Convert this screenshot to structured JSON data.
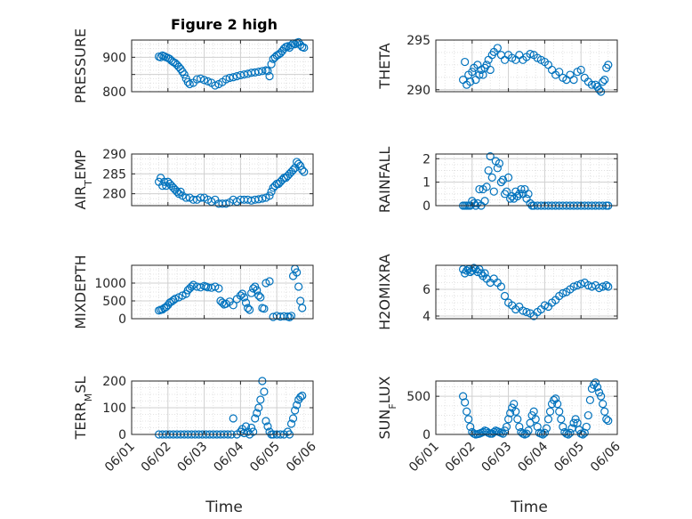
{
  "figure": {
    "title": "Figure 2 high",
    "xlabel": "Time",
    "x_tick_labels": [
      "06/01",
      "06/02",
      "06/03",
      "06/04",
      "06/05",
      "06/06"
    ],
    "marker_color": "#0072BD",
    "axis_color": "#262626",
    "grid_color": "#dcdcdc"
  },
  "chart_data": [
    {
      "type": "scatter",
      "ylabel": "PRESSURE",
      "xlim": [
        1.0,
        6.0
      ],
      "ylim": [
        800,
        950
      ],
      "yticks": [
        800,
        850,
        900
      ],
      "yticklabels": [
        "800",
        "",
        "900"
      ],
      "x": [
        1.75,
        1.8,
        1.85,
        1.9,
        1.95,
        2.0,
        2.05,
        2.1,
        2.15,
        2.2,
        2.25,
        2.3,
        2.35,
        2.4,
        2.45,
        2.5,
        2.55,
        2.6,
        2.7,
        2.8,
        2.9,
        3.0,
        3.1,
        3.2,
        3.3,
        3.4,
        3.5,
        3.6,
        3.7,
        3.8,
        3.9,
        4.0,
        4.1,
        4.2,
        4.3,
        4.4,
        4.5,
        4.6,
        4.7,
        4.75,
        4.8,
        4.85,
        4.9,
        4.95,
        5.0,
        5.05,
        5.1,
        5.15,
        5.2,
        5.25,
        5.3,
        5.35,
        5.4,
        5.45,
        5.5,
        5.55,
        5.6,
        5.65,
        5.7,
        5.75
      ],
      "y": [
        902,
        900,
        905,
        903,
        900,
        898,
        895,
        890,
        886,
        883,
        878,
        872,
        866,
        858,
        850,
        838,
        828,
        822,
        826,
        836,
        838,
        834,
        830,
        826,
        818,
        822,
        828,
        836,
        840,
        842,
        845,
        848,
        850,
        852,
        855,
        856,
        858,
        860,
        862,
        860,
        845,
        880,
        895,
        900,
        905,
        908,
        912,
        918,
        925,
        930,
        932,
        928,
        935,
        940,
        938,
        942,
        944,
        936,
        930,
        928
      ]
    },
    {
      "type": "scatter",
      "ylabel": "THETA",
      "xlim": [
        1.0,
        6.0
      ],
      "ylim": [
        289.8,
        295
      ],
      "yticks": [
        290,
        295
      ],
      "yticklabels": [
        "290",
        "295"
      ],
      "x": [
        1.75,
        1.8,
        1.85,
        1.9,
        1.95,
        2.0,
        2.05,
        2.1,
        2.15,
        2.2,
        2.25,
        2.3,
        2.35,
        2.4,
        2.45,
        2.5,
        2.55,
        2.6,
        2.7,
        2.8,
        2.9,
        3.0,
        3.1,
        3.2,
        3.3,
        3.4,
        3.5,
        3.6,
        3.7,
        3.8,
        3.9,
        4.0,
        4.1,
        4.2,
        4.3,
        4.4,
        4.5,
        4.6,
        4.7,
        4.8,
        4.9,
        5.0,
        5.1,
        5.2,
        5.3,
        5.4,
        5.45,
        5.5,
        5.55,
        5.6,
        5.65,
        5.7,
        5.75
      ],
      "y": [
        291.0,
        292.8,
        290.5,
        291.5,
        290.8,
        291.8,
        292.2,
        291.0,
        292.5,
        291.5,
        292.0,
        291.5,
        292.2,
        292.5,
        293.0,
        292.0,
        293.5,
        293.8,
        294.2,
        293.5,
        293.0,
        293.5,
        293.2,
        293.0,
        293.5,
        293.0,
        293.3,
        293.6,
        293.5,
        293.2,
        293.0,
        292.8,
        292.5,
        292.0,
        291.5,
        291.8,
        291.2,
        291.0,
        291.5,
        291.0,
        291.8,
        292.0,
        291.2,
        290.8,
        290.5,
        290.5,
        290.3,
        290.0,
        289.8,
        290.8,
        291.0,
        292.2,
        292.5
      ]
    },
    {
      "type": "scatter",
      "ylabel": "AIR_TEMP",
      "xlim": [
        1.0,
        6.0
      ],
      "ylim": [
        277,
        290
      ],
      "yticks": [
        280,
        285,
        290
      ],
      "yticklabels": [
        "280",
        "285",
        "290"
      ],
      "x": [
        1.75,
        1.8,
        1.85,
        1.9,
        1.95,
        2.0,
        2.05,
        2.1,
        2.15,
        2.2,
        2.25,
        2.3,
        2.35,
        2.4,
        2.5,
        2.6,
        2.7,
        2.8,
        2.9,
        3.0,
        3.1,
        3.2,
        3.3,
        3.4,
        3.5,
        3.6,
        3.7,
        3.8,
        3.9,
        4.0,
        4.1,
        4.2,
        4.3,
        4.4,
        4.5,
        4.6,
        4.7,
        4.8,
        4.85,
        4.9,
        4.95,
        5.0,
        5.05,
        5.1,
        5.15,
        5.2,
        5.25,
        5.3,
        5.35,
        5.4,
        5.45,
        5.5,
        5.55,
        5.6,
        5.65,
        5.7,
        5.75
      ],
      "y": [
        283,
        284,
        282,
        283,
        282,
        283,
        282.5,
        282,
        281.5,
        281,
        280.5,
        280,
        280.5,
        279.5,
        279,
        279,
        278.5,
        278.5,
        279,
        279,
        278.5,
        278,
        278.5,
        277.5,
        277.5,
        277.5,
        277.8,
        278.5,
        278,
        278.5,
        278.5,
        278.5,
        278.3,
        278.5,
        278.6,
        278.8,
        279,
        279.5,
        280.5,
        281.5,
        282,
        282.5,
        282.5,
        283,
        283.5,
        284,
        284,
        284.5,
        285,
        285.5,
        286,
        286.5,
        288,
        287.5,
        287,
        286,
        285.5
      ]
    },
    {
      "type": "scatter",
      "ylabel": "RAINFALL",
      "xlim": [
        1.0,
        6.0
      ],
      "ylim": [
        0,
        2.2
      ],
      "yticks": [
        0,
        1,
        2
      ],
      "yticklabels": [
        "0",
        "1",
        "2"
      ],
      "x": [
        1.75,
        1.8,
        1.85,
        1.9,
        1.95,
        2.0,
        2.05,
        2.1,
        2.15,
        2.2,
        2.25,
        2.3,
        2.35,
        2.4,
        2.45,
        2.5,
        2.55,
        2.6,
        2.65,
        2.7,
        2.75,
        2.8,
        2.85,
        2.9,
        2.95,
        3.0,
        3.05,
        3.1,
        3.15,
        3.2,
        3.25,
        3.3,
        3.35,
        3.4,
        3.45,
        3.5,
        3.55,
        3.6,
        3.65,
        3.7,
        3.8,
        3.9,
        4.0,
        4.1,
        4.2,
        4.3,
        4.4,
        4.5,
        4.6,
        4.7,
        4.8,
        4.9,
        5.0,
        5.1,
        5.2,
        5.3,
        5.4,
        5.5,
        5.6,
        5.7,
        5.75
      ],
      "y": [
        0,
        0,
        0,
        0,
        0,
        0.2,
        0.1,
        0,
        0.1,
        0.7,
        0,
        0.7,
        0.2,
        0.8,
        1.5,
        2.1,
        1.2,
        0.6,
        1.9,
        1.6,
        1.8,
        1.0,
        1.1,
        0.5,
        0.6,
        1.2,
        0.3,
        0.4,
        0.3,
        0.6,
        0.4,
        0.5,
        0.7,
        0.5,
        0.7,
        0.3,
        0.5,
        0.1,
        0,
        0,
        0,
        0,
        0,
        0,
        0,
        0,
        0,
        0,
        0,
        0,
        0,
        0,
        0,
        0,
        0,
        0,
        0,
        0,
        0,
        0,
        0
      ]
    },
    {
      "type": "scatter",
      "ylabel": "MIXDEPTH",
      "xlim": [
        1.0,
        6.0
      ],
      "ylim": [
        0,
        1500
      ],
      "yticks": [
        0,
        500,
        1000
      ],
      "yticklabels": [
        "0",
        "500",
        "1000"
      ],
      "x": [
        1.75,
        1.8,
        1.85,
        1.9,
        1.95,
        2.0,
        2.05,
        2.1,
        2.15,
        2.2,
        2.3,
        2.4,
        2.5,
        2.55,
        2.6,
        2.65,
        2.7,
        2.8,
        2.9,
        3.0,
        3.05,
        3.1,
        3.2,
        3.3,
        3.4,
        3.45,
        3.5,
        3.55,
        3.6,
        3.7,
        3.8,
        3.9,
        4.0,
        4.05,
        4.1,
        4.15,
        4.2,
        4.25,
        4.3,
        4.35,
        4.4,
        4.45,
        4.5,
        4.55,
        4.6,
        4.65,
        4.7,
        4.8,
        4.9,
        5.0,
        5.1,
        5.2,
        5.3,
        5.35,
        5.4,
        5.45,
        5.5,
        5.55,
        5.6,
        5.65,
        5.7
      ],
      "y": [
        230,
        250,
        260,
        300,
        330,
        380,
        450,
        480,
        520,
        560,
        600,
        650,
        700,
        800,
        850,
        900,
        950,
        900,
        880,
        920,
        900,
        880,
        870,
        900,
        850,
        500,
        450,
        400,
        420,
        480,
        380,
        550,
        650,
        700,
        600,
        450,
        300,
        250,
        720,
        850,
        900,
        800,
        650,
        600,
        300,
        280,
        1000,
        1050,
        50,
        80,
        60,
        70,
        60,
        40,
        80,
        1200,
        1400,
        1300,
        900,
        500,
        300
      ]
    },
    {
      "type": "scatter",
      "ylabel": "H2OMIXRA",
      "xlim": [
        1.0,
        6.0
      ],
      "ylim": [
        3.8,
        7.8
      ],
      "yticks": [
        4,
        6
      ],
      "yticklabels": [
        "4",
        "6"
      ],
      "x": [
        1.75,
        1.8,
        1.85,
        1.9,
        1.95,
        2.0,
        2.05,
        2.1,
        2.15,
        2.2,
        2.25,
        2.3,
        2.35,
        2.4,
        2.5,
        2.6,
        2.7,
        2.8,
        2.9,
        3.0,
        3.1,
        3.2,
        3.3,
        3.4,
        3.5,
        3.6,
        3.7,
        3.8,
        3.9,
        4.0,
        4.1,
        4.2,
        4.3,
        4.4,
        4.5,
        4.6,
        4.7,
        4.8,
        4.9,
        5.0,
        5.1,
        5.2,
        5.3,
        5.4,
        5.5,
        5.6,
        5.7,
        5.75
      ],
      "y": [
        7.5,
        7.2,
        7.4,
        7.5,
        7.3,
        7.4,
        7.6,
        7.5,
        7.3,
        7.5,
        7.2,
        7.0,
        7.2,
        6.8,
        6.5,
        6.8,
        6.5,
        6.2,
        5.5,
        5.0,
        4.8,
        4.5,
        4.7,
        4.4,
        4.3,
        4.2,
        4.0,
        4.3,
        4.5,
        4.8,
        4.7,
        5.0,
        5.2,
        5.5,
        5.7,
        5.8,
        6.0,
        6.2,
        6.3,
        6.4,
        6.5,
        6.3,
        6.2,
        6.3,
        6.1,
        6.2,
        6.3,
        6.2
      ]
    },
    {
      "type": "scatter",
      "ylabel": "TERR_MSL",
      "xlim": [
        1.0,
        6.0
      ],
      "ylim": [
        0,
        200
      ],
      "yticks": [
        0,
        100,
        200
      ],
      "yticklabels": [
        "0",
        "100",
        "200"
      ],
      "x": [
        1.75,
        1.85,
        1.95,
        2.05,
        2.15,
        2.25,
        2.35,
        2.45,
        2.55,
        2.65,
        2.75,
        2.85,
        2.95,
        3.05,
        3.15,
        3.25,
        3.35,
        3.45,
        3.55,
        3.65,
        3.75,
        3.8,
        3.9,
        4.0,
        4.05,
        4.1,
        4.15,
        4.2,
        4.25,
        4.3,
        4.35,
        4.4,
        4.45,
        4.5,
        4.55,
        4.6,
        4.65,
        4.7,
        4.75,
        4.8,
        4.85,
        4.9,
        5.0,
        5.1,
        5.2,
        5.3,
        5.35,
        5.4,
        5.45,
        5.5,
        5.55,
        5.6,
        5.65,
        5.7
      ],
      "y": [
        0,
        0,
        0,
        0,
        0,
        0,
        0,
        0,
        0,
        0,
        0,
        0,
        0,
        0,
        0,
        0,
        0,
        0,
        0,
        0,
        0,
        60,
        0,
        10,
        20,
        5,
        30,
        10,
        0,
        25,
        10,
        60,
        80,
        100,
        130,
        200,
        160,
        50,
        30,
        10,
        0,
        0,
        0,
        0,
        0,
        10,
        0,
        40,
        60,
        90,
        110,
        130,
        140,
        145
      ]
    },
    {
      "type": "scatter",
      "ylabel": "SUN_FLUX",
      "xlim": [
        1.0,
        6.0
      ],
      "ylim": [
        0,
        700
      ],
      "yticks": [
        0,
        500
      ],
      "yticklabels": [
        "0",
        "500"
      ],
      "x": [
        1.75,
        1.8,
        1.85,
        1.9,
        1.95,
        2.0,
        2.05,
        2.1,
        2.15,
        2.2,
        2.25,
        2.3,
        2.35,
        2.4,
        2.45,
        2.5,
        2.55,
        2.6,
        2.65,
        2.7,
        2.75,
        2.8,
        2.85,
        2.9,
        2.95,
        3.0,
        3.05,
        3.1,
        3.15,
        3.2,
        3.25,
        3.3,
        3.35,
        3.4,
        3.45,
        3.5,
        3.55,
        3.6,
        3.65,
        3.7,
        3.75,
        3.8,
        3.85,
        3.9,
        3.95,
        4.0,
        4.05,
        4.1,
        4.15,
        4.2,
        4.25,
        4.3,
        4.35,
        4.4,
        4.45,
        4.5,
        4.55,
        4.6,
        4.65,
        4.7,
        4.75,
        4.8,
        4.85,
        4.9,
        4.95,
        5.0,
        5.05,
        5.1,
        5.15,
        5.2,
        5.25,
        5.3,
        5.35,
        5.4,
        5.45,
        5.5,
        5.55,
        5.6,
        5.65,
        5.7,
        5.75
      ],
      "y": [
        500,
        420,
        300,
        200,
        100,
        30,
        10,
        0,
        5,
        10,
        20,
        30,
        50,
        40,
        20,
        10,
        10,
        30,
        50,
        40,
        30,
        20,
        10,
        50,
        100,
        200,
        280,
        350,
        400,
        300,
        200,
        100,
        30,
        10,
        0,
        10,
        50,
        150,
        250,
        300,
        200,
        100,
        20,
        10,
        0,
        20,
        80,
        200,
        300,
        400,
        450,
        470,
        400,
        300,
        200,
        100,
        30,
        10,
        0,
        20,
        80,
        150,
        200,
        150,
        60,
        10,
        0,
        20,
        100,
        250,
        450,
        600,
        650,
        680,
        620,
        550,
        500,
        400,
        300,
        200,
        180
      ]
    }
  ]
}
